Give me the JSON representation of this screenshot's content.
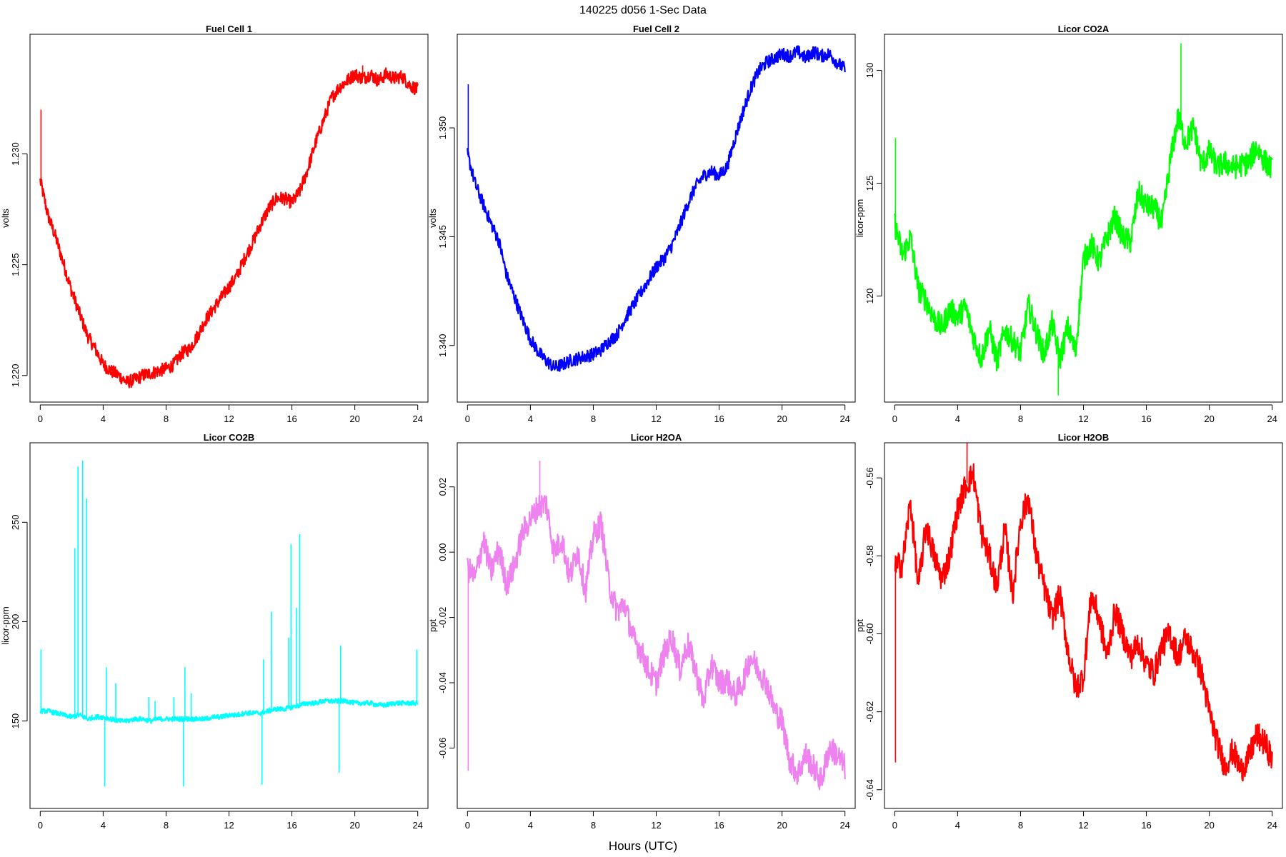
{
  "figure": {
    "title": "140225   d056   1-Sec Data",
    "xlabel": "Hours (UTC)"
  },
  "chart_data": [
    {
      "type": "line",
      "title": "Fuel Cell 1",
      "xlabel": "",
      "ylabel": "volts",
      "color": "#ff0000",
      "xlim": [
        -0.65,
        24.65
      ],
      "ylim": [
        1.2188,
        1.2354
      ],
      "xticks": [
        0,
        4,
        8,
        12,
        16,
        20,
        24
      ],
      "yticks": [
        1.22,
        1.225,
        1.23
      ],
      "ytick_labels": [
        "1.220",
        "1.225",
        "1.230"
      ],
      "series": [
        {
          "x": [
            0,
            0.5,
            1,
            1.5,
            2,
            2.5,
            3,
            3.5,
            4,
            4.5,
            5,
            5.5,
            6,
            6.5,
            7,
            7.5,
            8,
            8.5,
            9,
            9.5,
            10,
            10.5,
            11,
            11.5,
            12,
            12.5,
            13,
            13.5,
            14,
            14.5,
            15,
            15.5,
            16,
            16.5,
            17,
            17.5,
            18,
            18.5,
            19,
            19.5,
            20,
            20.5,
            21,
            21.5,
            22,
            22.5,
            23,
            23.5,
            24
          ],
          "y": [
            1.2288,
            1.2272,
            1.2262,
            1.225,
            1.2238,
            1.2228,
            1.2218,
            1.2212,
            1.2205,
            1.2202,
            1.22,
            1.2197,
            1.2198,
            1.22,
            1.2201,
            1.2202,
            1.2203,
            1.2205,
            1.221,
            1.2212,
            1.2218,
            1.2225,
            1.223,
            1.2235,
            1.224,
            1.2245,
            1.2253,
            1.226,
            1.2268,
            1.2275,
            1.228,
            1.228,
            1.2278,
            1.2283,
            1.2293,
            1.2305,
            1.2315,
            1.2325,
            1.233,
            1.2333,
            1.2336,
            1.2334,
            1.2336,
            1.2333,
            1.2336,
            1.2334,
            1.2335,
            1.2331,
            1.2329
          ],
          "noise": 0.0003,
          "spikes": [
            {
              "x": 0.05,
              "y": 1.232
            },
            {
              "x": 20.5,
              "y": 1.234
            }
          ]
        }
      ]
    },
    {
      "type": "line",
      "title": "Fuel Cell 2",
      "xlabel": "",
      "ylabel": "volts",
      "color": "#0000ff",
      "xlim": [
        -0.65,
        24.65
      ],
      "ylim": [
        1.3374,
        1.3543
      ],
      "xticks": [
        0,
        4,
        8,
        12,
        16,
        20,
        24
      ],
      "yticks": [
        1.34,
        1.345,
        1.35
      ],
      "ytick_labels": [
        "1.340",
        "1.345",
        "1.350"
      ],
      "series": [
        {
          "x": [
            0,
            0.5,
            1,
            1.5,
            2,
            2.5,
            3,
            3.5,
            4,
            4.5,
            5,
            5.5,
            6,
            6.5,
            7,
            7.5,
            8,
            8.5,
            9,
            9.5,
            10,
            10.5,
            11,
            11.5,
            12,
            12.5,
            13,
            13.5,
            14,
            14.5,
            15,
            15.5,
            16,
            16.5,
            17,
            17.5,
            18,
            18.5,
            19,
            19.5,
            20,
            20.5,
            21,
            21.5,
            22,
            22.5,
            23,
            23.5,
            24
          ],
          "y": [
            1.3488,
            1.3474,
            1.3465,
            1.3456,
            1.3448,
            1.3432,
            1.3422,
            1.3412,
            1.3403,
            1.3397,
            1.3393,
            1.339,
            1.3391,
            1.3393,
            1.3394,
            1.3395,
            1.3396,
            1.3398,
            1.3402,
            1.3405,
            1.3412,
            1.3418,
            1.3424,
            1.343,
            1.3436,
            1.344,
            1.3446,
            1.3455,
            1.3465,
            1.3473,
            1.3478,
            1.348,
            1.3478,
            1.3482,
            1.3495,
            1.3507,
            1.3518,
            1.3526,
            1.353,
            1.3532,
            1.3534,
            1.3533,
            1.3535,
            1.3532,
            1.3535,
            1.3533,
            1.3534,
            1.353,
            1.3527
          ],
          "noise": 0.0003,
          "spikes": [
            {
              "x": 0.05,
              "y": 1.352
            }
          ]
        }
      ]
    },
    {
      "type": "line",
      "title": "Licor CO2A",
      "xlabel": "",
      "ylabel": "licor-ppm",
      "color": "#00ff00",
      "xlim": [
        -0.65,
        24.65
      ],
      "ylim": [
        115.3,
        131.6
      ],
      "xticks": [
        0,
        4,
        8,
        12,
        16,
        20,
        24
      ],
      "yticks": [
        120,
        125,
        130
      ],
      "ytick_labels": [
        "120",
        "125",
        "130"
      ],
      "series": [
        {
          "x": [
            0,
            0.5,
            1,
            1.5,
            2,
            2.5,
            3,
            3.5,
            4,
            4.5,
            5,
            5.5,
            6,
            6.5,
            7,
            7.5,
            8,
            8.5,
            9,
            9.5,
            10,
            10.5,
            11,
            11.5,
            12,
            12.5,
            13,
            13.5,
            14,
            14.5,
            15,
            15.5,
            16,
            16.5,
            17,
            17.5,
            18,
            18.5,
            19,
            19.5,
            20,
            20.5,
            21,
            21.5,
            22,
            22.5,
            23,
            23.5,
            24
          ],
          "y": [
            123.2,
            121.8,
            122.6,
            120.3,
            119.8,
            119.0,
            118.6,
            119.4,
            119.1,
            119.5,
            118.2,
            117.2,
            118.6,
            117.1,
            118.5,
            118.0,
            117.5,
            119.6,
            118.4,
            117.4,
            118.8,
            117.2,
            118.6,
            117.5,
            121.6,
            122.3,
            121.5,
            122.6,
            123.5,
            122.6,
            122.4,
            124.6,
            124.0,
            123.9,
            123.2,
            125.9,
            127.9,
            126.8,
            127.5,
            125.8,
            126.4,
            125.7,
            125.9,
            125.7,
            125.8,
            125.9,
            126.6,
            126.0,
            125.6
          ],
          "noise": 0.55,
          "spikes": [
            {
              "x": 0.05,
              "y": 127.0
            },
            {
              "x": 18.2,
              "y": 131.2
            },
            {
              "x": 10.4,
              "y": 115.6
            }
          ]
        }
      ]
    },
    {
      "type": "line",
      "title": "Licor CO2B",
      "xlabel": "",
      "ylabel": "licor-ppm",
      "color": "#00ffff",
      "xlim": [
        -0.65,
        24.65
      ],
      "ylim": [
        106,
        290
      ],
      "xticks": [
        0,
        4,
        8,
        12,
        16,
        20,
        24
      ],
      "yticks": [
        150,
        200,
        250
      ],
      "ytick_labels": [
        "150",
        "200",
        "250"
      ],
      "series": [
        {
          "x": [
            0,
            0.5,
            1,
            1.5,
            2,
            2.5,
            3,
            3.5,
            4,
            4.5,
            5,
            5.5,
            6,
            6.5,
            7,
            7.5,
            8,
            8.5,
            9,
            9.5,
            10,
            10.5,
            11,
            11.5,
            12,
            12.5,
            13,
            13.5,
            14,
            14.5,
            15,
            15.5,
            16,
            16.5,
            17,
            17.5,
            18,
            18.5,
            19,
            19.5,
            20,
            20.5,
            21,
            21.5,
            22,
            22.5,
            23,
            23.5,
            24
          ],
          "y": [
            155,
            155,
            154,
            153,
            152,
            153,
            151,
            152,
            152,
            151,
            150,
            150,
            151,
            151,
            150,
            151,
            151,
            151,
            151,
            151,
            151,
            151,
            152,
            152,
            153,
            153,
            154,
            154,
            154,
            155,
            156,
            156,
            157,
            158,
            159,
            159,
            160,
            160,
            160,
            160,
            159,
            159,
            159,
            158,
            158,
            159,
            159,
            159,
            159
          ],
          "noise": 1.2,
          "spikes": [
            {
              "x": 0.05,
              "y": 186
            },
            {
              "x": 2.2,
              "y": 237
            },
            {
              "x": 2.4,
              "y": 278
            },
            {
              "x": 2.7,
              "y": 281
            },
            {
              "x": 2.95,
              "y": 262
            },
            {
              "x": 4.1,
              "y": 117
            },
            {
              "x": 4.2,
              "y": 177
            },
            {
              "x": 4.8,
              "y": 169
            },
            {
              "x": 6.9,
              "y": 162
            },
            {
              "x": 7.3,
              "y": 160
            },
            {
              "x": 8.5,
              "y": 162
            },
            {
              "x": 9.1,
              "y": 117
            },
            {
              "x": 9.2,
              "y": 177
            },
            {
              "x": 9.6,
              "y": 164
            },
            {
              "x": 14.1,
              "y": 118
            },
            {
              "x": 14.2,
              "y": 181
            },
            {
              "x": 14.7,
              "y": 205
            },
            {
              "x": 15.8,
              "y": 192
            },
            {
              "x": 15.95,
              "y": 239
            },
            {
              "x": 16.3,
              "y": 207
            },
            {
              "x": 16.5,
              "y": 244
            },
            {
              "x": 19.0,
              "y": 124
            },
            {
              "x": 19.1,
              "y": 188
            },
            {
              "x": 23.95,
              "y": 186
            }
          ]
        }
      ]
    },
    {
      "type": "line",
      "title": "Licor H2OA",
      "xlabel": "",
      "ylabel": "ppt",
      "color": "#ee82ee",
      "xlim": [
        -0.65,
        24.65
      ],
      "ylim": [
        -0.0785,
        0.0335
      ],
      "xticks": [
        0,
        4,
        8,
        12,
        16,
        20,
        24
      ],
      "yticks": [
        -0.06,
        -0.04,
        -0.02,
        0.0,
        0.02
      ],
      "ytick_labels": [
        "-0.06",
        "-0.04",
        "-0.02",
        "0.00",
        "0.02"
      ],
      "series": [
        {
          "x": [
            0,
            0.5,
            1,
            1.5,
            2,
            2.5,
            3,
            3.5,
            4,
            4.5,
            5,
            5.5,
            6,
            6.5,
            7,
            7.5,
            8,
            8.5,
            9,
            9.5,
            10,
            10.5,
            11,
            11.5,
            12,
            12.5,
            13,
            13.5,
            14,
            14.5,
            15,
            15.5,
            16,
            16.5,
            17,
            17.5,
            18,
            18.5,
            19,
            19.5,
            20,
            20.5,
            21,
            21.5,
            22,
            22.5,
            23,
            23.5,
            24
          ],
          "y": [
            -0.005,
            -0.008,
            0.004,
            -0.006,
            0.001,
            -0.01,
            -0.004,
            0.006,
            0.01,
            0.014,
            0.015,
            0.0,
            0.004,
            -0.008,
            0.001,
            -0.012,
            0.005,
            0.009,
            -0.01,
            -0.018,
            -0.016,
            -0.026,
            -0.03,
            -0.036,
            -0.04,
            -0.031,
            -0.026,
            -0.036,
            -0.028,
            -0.036,
            -0.046,
            -0.034,
            -0.04,
            -0.039,
            -0.044,
            -0.04,
            -0.032,
            -0.036,
            -0.04,
            -0.048,
            -0.052,
            -0.064,
            -0.068,
            -0.062,
            -0.066,
            -0.07,
            -0.06,
            -0.062,
            -0.066
          ],
          "noise": 0.004,
          "spikes": [
            {
              "x": 0.05,
              "y": -0.067
            },
            {
              "x": 4.6,
              "y": 0.028
            }
          ]
        }
      ]
    },
    {
      "type": "line",
      "title": "Licor H2OB",
      "xlabel": "",
      "ylabel": "ppt",
      "color": "#ff0000",
      "xlim": [
        -0.65,
        24.65
      ],
      "ylim": [
        -0.6448,
        -0.551
      ],
      "xticks": [
        0,
        4,
        8,
        12,
        16,
        20,
        24
      ],
      "yticks": [
        -0.64,
        -0.62,
        -0.6,
        -0.58,
        -0.56
      ],
      "ytick_labels": [
        "-0.64",
        "-0.62",
        "-0.60",
        "-0.58",
        "-0.56"
      ],
      "series": [
        {
          "x": [
            0,
            0.5,
            1,
            1.5,
            2,
            2.5,
            3,
            3.5,
            4,
            4.5,
            5,
            5.5,
            6,
            6.5,
            7,
            7.5,
            8,
            8.5,
            9,
            9.5,
            10,
            10.5,
            11,
            11.5,
            12,
            12.5,
            13,
            13.5,
            14,
            14.5,
            15,
            15.5,
            16,
            16.5,
            17,
            17.5,
            18,
            18.5,
            19,
            19.5,
            20,
            20.5,
            21,
            21.5,
            22,
            22.5,
            23,
            23.5,
            24
          ],
          "y": [
            -0.583,
            -0.582,
            -0.566,
            -0.588,
            -0.572,
            -0.58,
            -0.586,
            -0.58,
            -0.568,
            -0.562,
            -0.559,
            -0.574,
            -0.58,
            -0.588,
            -0.573,
            -0.59,
            -0.571,
            -0.565,
            -0.58,
            -0.588,
            -0.596,
            -0.59,
            -0.604,
            -0.614,
            -0.611,
            -0.59,
            -0.596,
            -0.606,
            -0.594,
            -0.6,
            -0.606,
            -0.602,
            -0.608,
            -0.61,
            -0.603,
            -0.6,
            -0.606,
            -0.601,
            -0.605,
            -0.61,
            -0.62,
            -0.628,
            -0.634,
            -0.63,
            -0.635,
            -0.632,
            -0.626,
            -0.628,
            -0.632
          ],
          "noise": 0.0035,
          "spikes": [
            {
              "x": 0.05,
              "y": -0.633
            },
            {
              "x": 4.6,
              "y": -0.551
            }
          ]
        }
      ]
    }
  ]
}
